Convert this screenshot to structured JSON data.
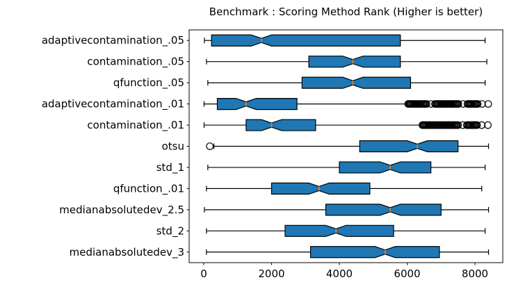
{
  "chart_data": {
    "type": "boxplot",
    "orientation": "horizontal",
    "notched": true,
    "title": "Benchmark : Scoring Method Rank (Higher is better)",
    "xlabel": "",
    "ylabel": "",
    "xlim": [
      -430,
      8820
    ],
    "xticks": [
      0,
      2000,
      4000,
      6000,
      8000
    ],
    "grid": false,
    "legend": "none",
    "colors": {
      "box_fill": "#1f77b4",
      "box_edge": "#000000",
      "median": "#ff7f0e",
      "whisker": "#000000",
      "outlier_edge": "#000000",
      "axis": "#000000",
      "text": "#000000",
      "background": "#ffffff"
    },
    "categories": [
      "adaptivecontamination_.05",
      "contamination_.05",
      "qfunction_.05",
      "adaptivecontamination_.01",
      "contamination_.01",
      "otsu",
      "std_1",
      "qfunction_.01",
      "medianabsolutedev_2.5",
      "std_2",
      "medianabsolutedev_3"
    ],
    "boxes": [
      {
        "label": "adaptivecontamination_.05",
        "whisker_low": 20,
        "q1": 230,
        "median": 1700,
        "q3": 5800,
        "whisker_high": 8300,
        "outliers": []
      },
      {
        "label": "contamination_.05",
        "whisker_low": 80,
        "q1": 3100,
        "median": 4400,
        "q3": 5800,
        "whisker_high": 8350,
        "outliers": []
      },
      {
        "label": "qfunction_.05",
        "whisker_low": 120,
        "q1": 2900,
        "median": 4400,
        "q3": 6100,
        "whisker_high": 8300,
        "outliers": []
      },
      {
        "label": "adaptivecontamination_.01",
        "whisker_low": 10,
        "q1": 400,
        "median": 1250,
        "q3": 2750,
        "whisker_high": 6000,
        "outliers": [
          6030,
          6060,
          6090,
          6120,
          6150,
          6180,
          6210,
          6240,
          6270,
          6300,
          6330,
          6360,
          6390,
          6420,
          6450,
          6480,
          6510,
          6540,
          6570,
          6700,
          6820,
          6850,
          6880,
          6910,
          6940,
          6970,
          7000,
          7030,
          7060,
          7090,
          7120,
          7150,
          7180,
          7210,
          7240,
          7270,
          7300,
          7330,
          7360,
          7390,
          7420,
          7450,
          7480,
          7510,
          7650,
          7780,
          7810,
          7840,
          7870,
          7900,
          7930,
          7960,
          7990,
          8020,
          8050,
          8080,
          8210,
          8390
        ]
      },
      {
        "label": "contamination_.01",
        "whisker_low": 10,
        "q1": 1250,
        "median": 2000,
        "q3": 3300,
        "whisker_high": 6400,
        "outliers": [
          6450,
          6480,
          6510,
          6540,
          6570,
          6600,
          6630,
          6660,
          6690,
          6720,
          6750,
          6780,
          6810,
          6840,
          6870,
          6900,
          6930,
          6960,
          6990,
          7020,
          7050,
          7080,
          7110,
          7140,
          7170,
          7200,
          7230,
          7260,
          7290,
          7320,
          7350,
          7380,
          7410,
          7440,
          7470,
          7500,
          7640,
          7760,
          7790,
          7820,
          7850,
          7880,
          7910,
          7940,
          7970,
          8000,
          8030,
          8060,
          8200,
          8380
        ]
      },
      {
        "label": "otsu",
        "whisker_low": 300,
        "q1": 4600,
        "median": 6300,
        "q3": 7500,
        "whisker_high": 8400,
        "outliers": [
          180
        ]
      },
      {
        "label": "std_1",
        "whisker_low": 120,
        "q1": 4000,
        "median": 5500,
        "q3": 6700,
        "whisker_high": 8300,
        "outliers": []
      },
      {
        "label": "qfunction_.01",
        "whisker_low": 80,
        "q1": 2000,
        "median": 3400,
        "q3": 4900,
        "whisker_high": 8200,
        "outliers": []
      },
      {
        "label": "medianabsolutedev_2.5",
        "whisker_low": 20,
        "q1": 3600,
        "median": 5500,
        "q3": 7000,
        "whisker_high": 8400,
        "outliers": []
      },
      {
        "label": "std_2",
        "whisker_low": 80,
        "q1": 2400,
        "median": 3900,
        "q3": 5600,
        "whisker_high": 8300,
        "outliers": []
      },
      {
        "label": "medianabsolutedev_3",
        "whisker_low": 80,
        "q1": 3150,
        "median": 5350,
        "q3": 6950,
        "whisker_high": 8400,
        "outliers": []
      }
    ]
  }
}
